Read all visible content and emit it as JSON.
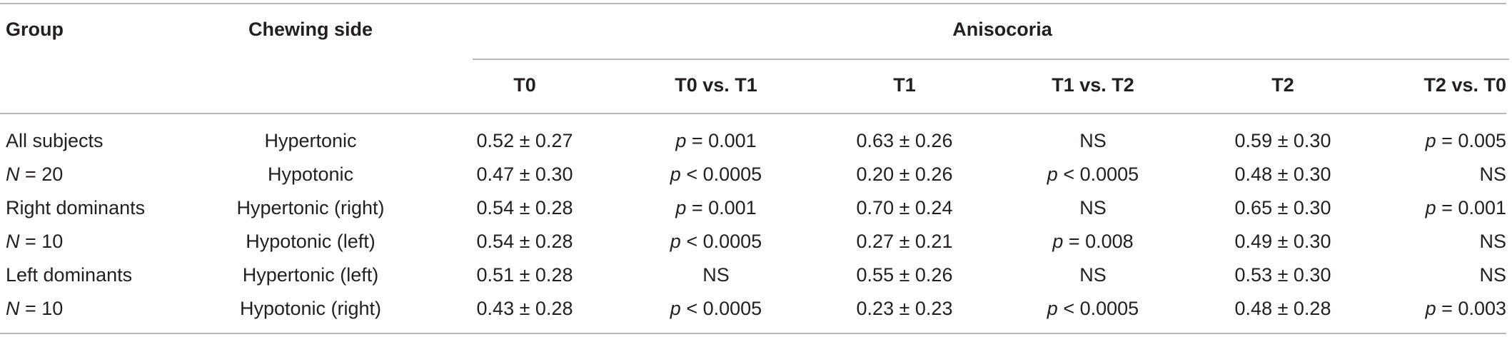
{
  "headers": {
    "group": "Group",
    "chewing_side": "Chewing side",
    "anisocoria": "Anisocoria",
    "sub": [
      "T0",
      "T0 vs. T1",
      "T1",
      "T1 vs. T2",
      "T2",
      "T2 vs. T0"
    ]
  },
  "rows": [
    {
      "group": "All subjects",
      "side": "Hypertonic",
      "t0": "0.52 ± 0.27",
      "t0_t1": "p = 0.001",
      "t1": "0.63 ± 0.26",
      "t1_t2": "NS",
      "t2": "0.59 ± 0.30",
      "t2_t0": "p = 0.005"
    },
    {
      "group": "N = 20",
      "side": "Hypotonic",
      "t0": "0.47 ± 0.30",
      "t0_t1": "p < 0.0005",
      "t1": "0.20 ± 0.26",
      "t1_t2": "p < 0.0005",
      "t2": "0.48 ± 0.30",
      "t2_t0": "NS"
    },
    {
      "group": "Right dominants",
      "side": "Hypertonic (right)",
      "t0": "0.54 ± 0.28",
      "t0_t1": "p = 0.001",
      "t1": "0.70 ± 0.24",
      "t1_t2": "NS",
      "t2": "0.65 ± 0.30",
      "t2_t0": "p = 0.001"
    },
    {
      "group": "N = 10",
      "side": "Hypotonic (left)",
      "t0": "0.54 ± 0.28",
      "t0_t1": "p < 0.0005",
      "t1": "0.27 ± 0.21",
      "t1_t2": "p = 0.008",
      "t2": "0.49 ± 0.30",
      "t2_t0": "NS"
    },
    {
      "group": "Left dominants",
      "side": "Hypertonic (left)",
      "t0": "0.51 ± 0.28",
      "t0_t1": "NS",
      "t1": "0.55 ± 0.26",
      "t1_t2": "NS",
      "t2": "0.53 ± 0.30",
      "t2_t0": "NS"
    },
    {
      "group": "N = 10",
      "side": "Hypotonic (right)",
      "t0": "0.43 ± 0.28",
      "t0_t1": "p < 0.0005",
      "t1": "0.23 ± 0.23",
      "t1_t2": "p < 0.0005",
      "t2": "0.48 ± 0.28",
      "t2_t0": "p = 0.003"
    }
  ]
}
